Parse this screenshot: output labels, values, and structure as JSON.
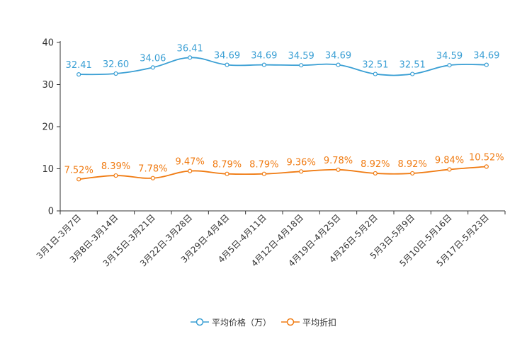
{
  "chart_data": {
    "type": "line",
    "title": "",
    "xlabel": "",
    "ylabel": "",
    "ylim": [
      0,
      40
    ],
    "yticks": [
      0,
      10,
      20,
      30,
      40
    ],
    "grid": false,
    "legend_position": "bottom-center",
    "categories": [
      "3月1日-3月7日",
      "3月8日-3月14日",
      "3月15日-3月21日",
      "3月22日-3月28日",
      "3月29日-4月4日",
      "4月5日-4月11日",
      "4月12日-4月18日",
      "4月19日-4月25日",
      "4月26日-5月2日",
      "5月3日-5月9日",
      "5月10日-5月16日",
      "5月17日-5月23日"
    ],
    "series": [
      {
        "name": "平均价格（万）",
        "color": "#3a9fd4",
        "values": [
          32.41,
          32.6,
          34.06,
          36.41,
          34.69,
          34.69,
          34.59,
          34.69,
          32.51,
          32.51,
          34.59,
          34.69
        ],
        "labels": [
          "32.41",
          "32.60",
          "34.06",
          "36.41",
          "34.69",
          "34.69",
          "34.59",
          "34.69",
          "32.51",
          "32.51",
          "34.59",
          "34.69"
        ]
      },
      {
        "name": "平均折扣",
        "color": "#f07b12",
        "values": [
          7.52,
          8.39,
          7.78,
          9.47,
          8.79,
          8.79,
          9.36,
          9.78,
          8.92,
          8.92,
          9.84,
          10.52
        ],
        "labels": [
          "7.52%",
          "8.39%",
          "7.78%",
          "9.47%",
          "8.79%",
          "8.79%",
          "9.36%",
          "9.78%",
          "8.92%",
          "8.92%",
          "9.84%",
          "10.52%"
        ]
      }
    ]
  },
  "legend": {
    "price": "平均价格（万）",
    "discount": "平均折扣"
  }
}
